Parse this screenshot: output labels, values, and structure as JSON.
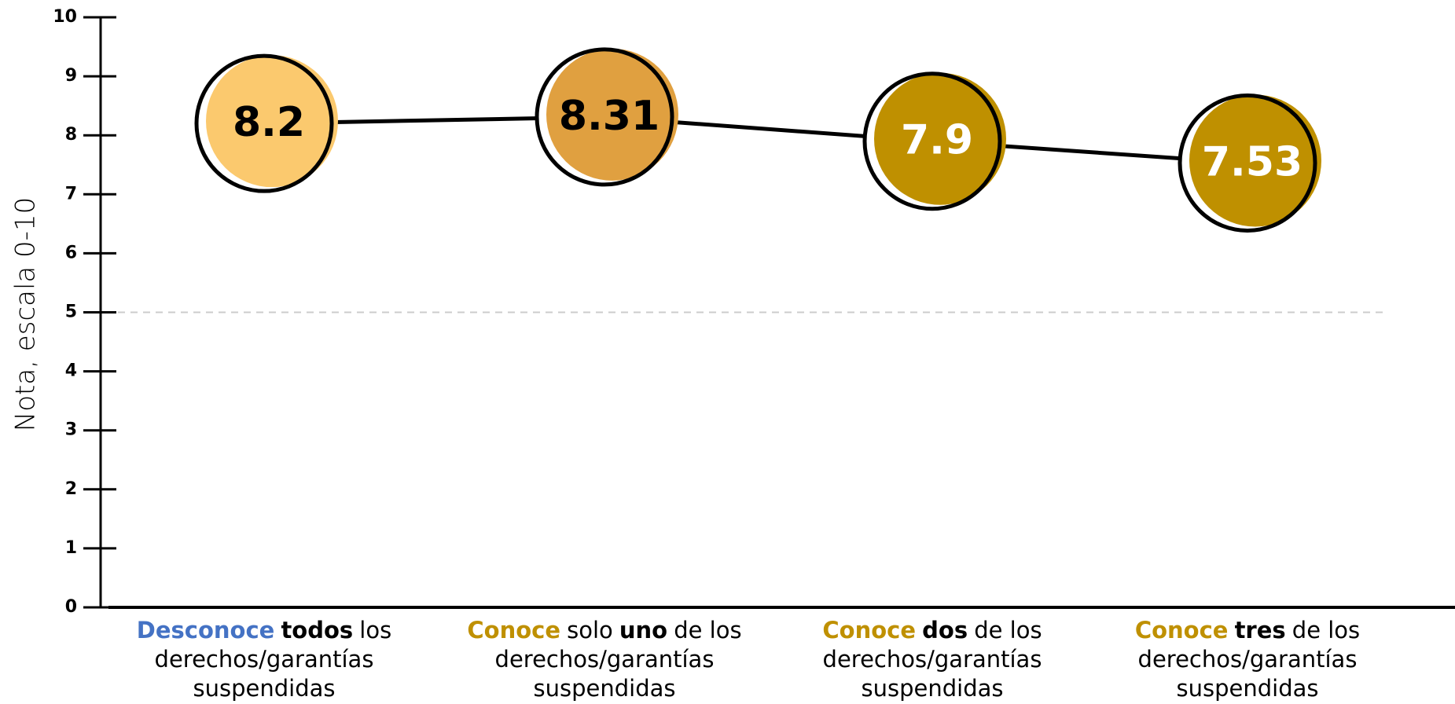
{
  "chart_data": {
    "type": "line",
    "y_label": "Nota, escala 0-10",
    "categories": [
      [
        {
          "text": "Desconoce",
          "color": "#4472c4",
          "bold": true
        },
        {
          "text": "todos",
          "color": "#000000",
          "bold": true
        },
        {
          "text": "los derechos/garantías suspendidas",
          "color": "#000000",
          "bold": false
        }
      ],
      [
        {
          "text": "Conoce",
          "color": "#bf9000",
          "bold": true
        },
        {
          "text": "solo",
          "color": "#000000",
          "bold": false
        },
        {
          "text": "uno",
          "color": "#000000",
          "bold": true
        },
        {
          "text": "de los derechos/garantías suspendidas",
          "color": "#000000",
          "bold": false
        }
      ],
      [
        {
          "text": "Conoce",
          "color": "#bf9000",
          "bold": true
        },
        {
          "text": "dos",
          "color": "#000000",
          "bold": true
        },
        {
          "text": "de los derechos/garantías suspendidas",
          "color": "#000000",
          "bold": false
        }
      ],
      [
        {
          "text": "Conoce",
          "color": "#bf9000",
          "bold": true
        },
        {
          "text": "tres",
          "color": "#000000",
          "bold": true
        },
        {
          "text": "de los derechos/garantías suspendidas",
          "color": "#000000",
          "bold": false
        }
      ]
    ],
    "values": [
      8.2,
      8.31,
      7.9,
      7.53
    ],
    "colors": [
      "#fbc96e",
      "#e0a040",
      "#bf9000",
      "#bf9000"
    ],
    "label_colors": [
      "#000000",
      "#000000",
      "#ffffff",
      "#ffffff"
    ],
    "line_color": "#000000",
    "ylim": [
      0,
      10
    ],
    "yticks": [
      0,
      1,
      2,
      3,
      4,
      5,
      6,
      7,
      8,
      9,
      10
    ],
    "reference_line": 5
  }
}
